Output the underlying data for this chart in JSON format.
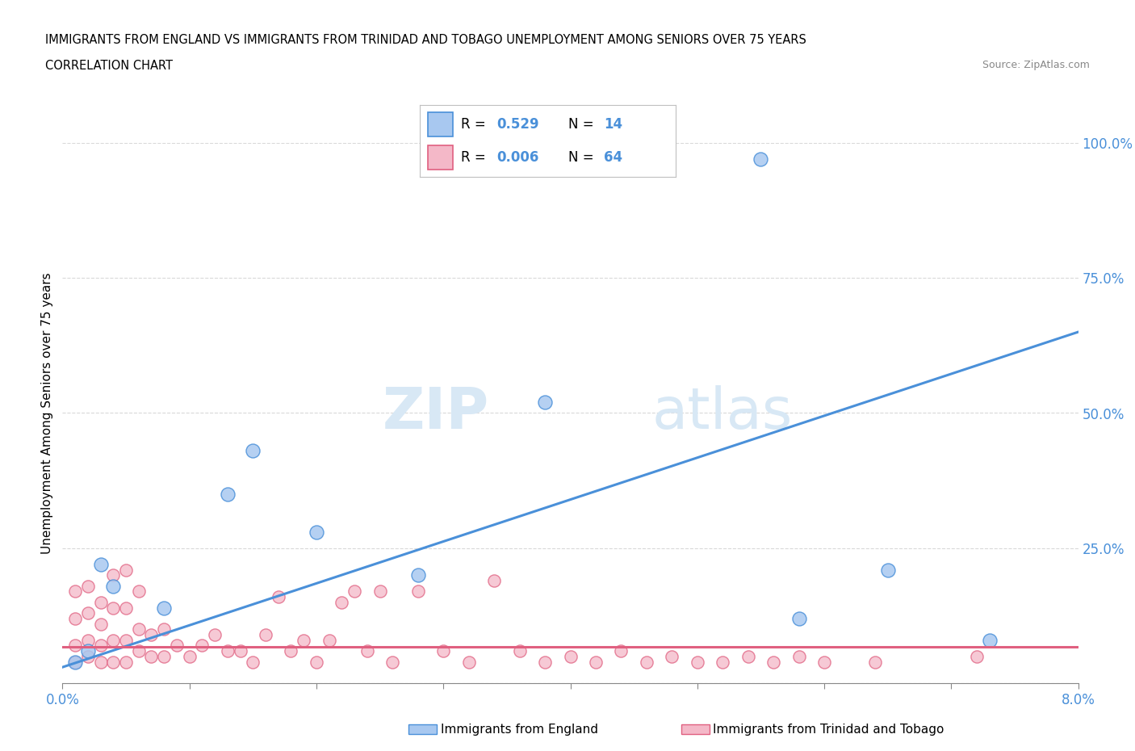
{
  "title_line1": "IMMIGRANTS FROM ENGLAND VS IMMIGRANTS FROM TRINIDAD AND TOBAGO UNEMPLOYMENT AMONG SENIORS OVER 75 YEARS",
  "title_line2": "CORRELATION CHART",
  "source_text": "Source: ZipAtlas.com",
  "ylabel": "Unemployment Among Seniors over 75 years",
  "x_min": 0.0,
  "x_max": 0.08,
  "y_min": 0.0,
  "y_max": 1.0,
  "color_england": "#a8c8f0",
  "color_tt": "#f4b8c8",
  "trendline_england_color": "#4a90d9",
  "trendline_tt_color": "#e06080",
  "watermark_zip": "ZIP",
  "watermark_atlas": "atlas",
  "england_x": [
    0.001,
    0.002,
    0.003,
    0.004,
    0.008,
    0.013,
    0.015,
    0.02,
    0.028,
    0.038,
    0.055,
    0.058,
    0.065,
    0.073
  ],
  "england_y": [
    0.04,
    0.06,
    0.22,
    0.18,
    0.14,
    0.35,
    0.43,
    0.28,
    0.2,
    0.52,
    0.97,
    0.12,
    0.21,
    0.08
  ],
  "tt_x": [
    0.001,
    0.001,
    0.001,
    0.001,
    0.002,
    0.002,
    0.002,
    0.002,
    0.003,
    0.003,
    0.003,
    0.003,
    0.004,
    0.004,
    0.004,
    0.004,
    0.005,
    0.005,
    0.005,
    0.005,
    0.006,
    0.006,
    0.006,
    0.007,
    0.007,
    0.008,
    0.008,
    0.009,
    0.01,
    0.011,
    0.012,
    0.013,
    0.014,
    0.015,
    0.016,
    0.017,
    0.018,
    0.019,
    0.02,
    0.021,
    0.022,
    0.023,
    0.024,
    0.025,
    0.026,
    0.028,
    0.03,
    0.032,
    0.034,
    0.036,
    0.038,
    0.04,
    0.042,
    0.044,
    0.046,
    0.048,
    0.05,
    0.052,
    0.054,
    0.056,
    0.058,
    0.06,
    0.064,
    0.072
  ],
  "tt_y": [
    0.04,
    0.07,
    0.12,
    0.17,
    0.05,
    0.08,
    0.13,
    0.18,
    0.04,
    0.07,
    0.11,
    0.15,
    0.04,
    0.08,
    0.14,
    0.2,
    0.04,
    0.08,
    0.14,
    0.21,
    0.06,
    0.1,
    0.17,
    0.05,
    0.09,
    0.05,
    0.1,
    0.07,
    0.05,
    0.07,
    0.09,
    0.06,
    0.06,
    0.04,
    0.09,
    0.16,
    0.06,
    0.08,
    0.04,
    0.08,
    0.15,
    0.17,
    0.06,
    0.17,
    0.04,
    0.17,
    0.06,
    0.04,
    0.19,
    0.06,
    0.04,
    0.05,
    0.04,
    0.06,
    0.04,
    0.05,
    0.04,
    0.04,
    0.05,
    0.04,
    0.05,
    0.04,
    0.04,
    0.05
  ]
}
